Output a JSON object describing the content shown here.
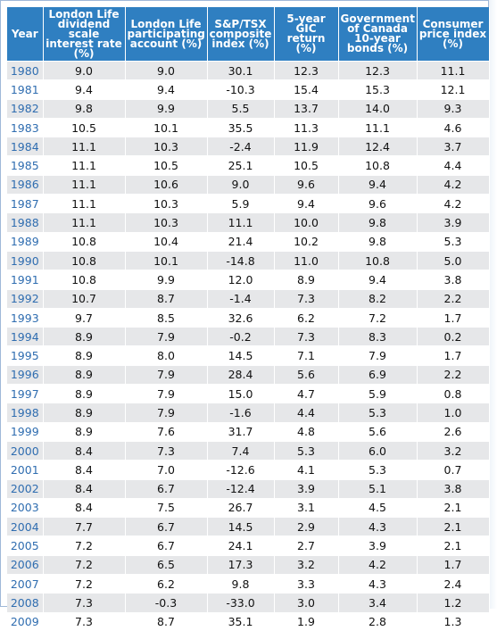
{
  "table": {
    "headers": [
      "Year",
      "London Life dividend scale interest rate (%)",
      "London Life participating account (%)",
      "S&P/TSX composite index (%)",
      "5-year GIC return (%)",
      "Government of Canada 10-year bonds (%)",
      "Consumer price index (%)"
    ],
    "rows": [
      [
        "1980",
        "9.0",
        "9.0",
        "30.1",
        "12.3",
        "12.3",
        "11.1"
      ],
      [
        "1981",
        "9.4",
        "9.4",
        "-10.3",
        "15.4",
        "15.3",
        "12.1"
      ],
      [
        "1982",
        "9.8",
        "9.9",
        "5.5",
        "13.7",
        "14.0",
        "9.3"
      ],
      [
        "1983",
        "10.5",
        "10.1",
        "35.5",
        "11.3",
        "11.1",
        "4.6"
      ],
      [
        "1984",
        "11.1",
        "10.3",
        "-2.4",
        "11.9",
        "12.4",
        "3.7"
      ],
      [
        "1985",
        "11.1",
        "10.5",
        "25.1",
        "10.5",
        "10.8",
        "4.4"
      ],
      [
        "1986",
        "11.1",
        "10.6",
        "9.0",
        "9.6",
        "9.4",
        "4.2"
      ],
      [
        "1987",
        "11.1",
        "10.3",
        "5.9",
        "9.4",
        "9.6",
        "4.2"
      ],
      [
        "1988",
        "11.1",
        "10.3",
        "11.1",
        "10.0",
        "9.8",
        "3.9"
      ],
      [
        "1989",
        "10.8",
        "10.4",
        "21.4",
        "10.2",
        "9.8",
        "5.3"
      ],
      [
        "1990",
        "10.8",
        "10.1",
        "-14.8",
        "11.0",
        "10.8",
        "5.0"
      ],
      [
        "1991",
        "10.8",
        "9.9",
        "12.0",
        "8.9",
        "9.4",
        "3.8"
      ],
      [
        "1992",
        "10.7",
        "8.7",
        "-1.4",
        "7.3",
        "8.2",
        "2.2"
      ],
      [
        "1993",
        "9.7",
        "8.5",
        "32.6",
        "6.2",
        "7.2",
        "1.7"
      ],
      [
        "1994",
        "8.9",
        "7.9",
        "-0.2",
        "7.3",
        "8.3",
        "0.2"
      ],
      [
        "1995",
        "8.9",
        "8.0",
        "14.5",
        "7.1",
        "7.9",
        "1.7"
      ],
      [
        "1996",
        "8.9",
        "7.9",
        "28.4",
        "5.6",
        "6.9",
        "2.2"
      ],
      [
        "1997",
        "8.9",
        "7.9",
        "15.0",
        "4.7",
        "5.9",
        "0.8"
      ],
      [
        "1998",
        "8.9",
        "7.9",
        "-1.6",
        "4.4",
        "5.3",
        "1.0"
      ],
      [
        "1999",
        "8.9",
        "7.6",
        "31.7",
        "4.8",
        "5.6",
        "2.6"
      ],
      [
        "2000",
        "8.4",
        "7.3",
        "7.4",
        "5.3",
        "6.0",
        "3.2"
      ],
      [
        "2001",
        "8.4",
        "7.0",
        "-12.6",
        "4.1",
        "5.3",
        "0.7"
      ],
      [
        "2002",
        "8.4",
        "6.7",
        "-12.4",
        "3.9",
        "5.1",
        "3.8"
      ],
      [
        "2003",
        "8.4",
        "7.5",
        "26.7",
        "3.1",
        "4.5",
        "2.1"
      ],
      [
        "2004",
        "7.7",
        "6.7",
        "14.5",
        "2.9",
        "4.3",
        "2.1"
      ],
      [
        "2005",
        "7.2",
        "6.7",
        "24.1",
        "2.7",
        "3.9",
        "2.1"
      ],
      [
        "2006",
        "7.2",
        "6.5",
        "17.3",
        "3.2",
        "4.2",
        "1.7"
      ],
      [
        "2007",
        "7.2",
        "6.2",
        "9.8",
        "3.3",
        "4.3",
        "2.4"
      ],
      [
        "2008",
        "7.3",
        "-0.3",
        "-33.0",
        "3.0",
        "3.4",
        "1.2"
      ],
      [
        "2009",
        "7.3",
        "8.7",
        "35.1",
        "1.9",
        "2.8",
        "1.3"
      ]
    ]
  },
  "colors": {
    "header_bg": "#2f7fc1",
    "header_text": "#ffffff",
    "year_text": "#2f6db0",
    "stripe": "#e6e7e9"
  }
}
